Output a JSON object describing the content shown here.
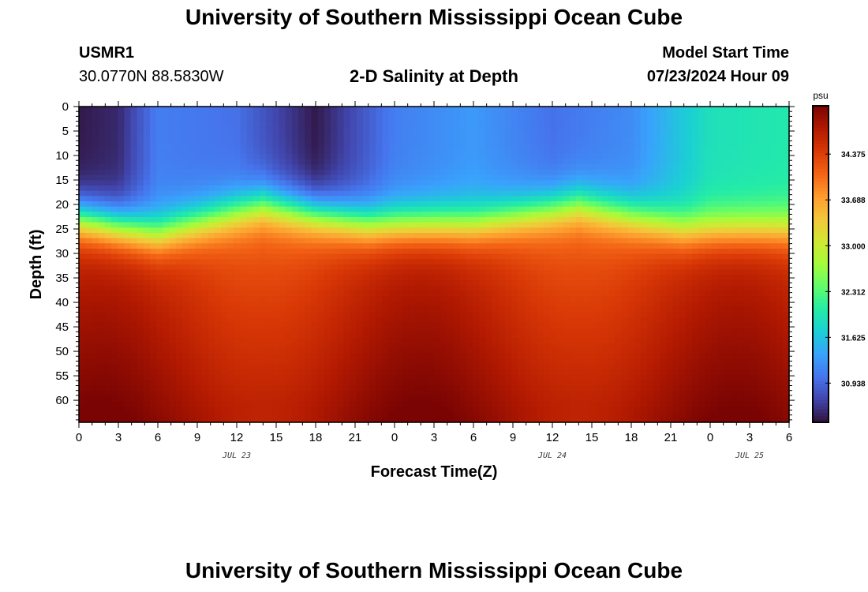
{
  "header": {
    "title": "University of Southern Mississippi Ocean Cube",
    "station_id": "USMR1",
    "station_coords": "30.0770N  88.5830W",
    "chart_title": "2-D Salinity at Depth",
    "model_label": "Model Start Time",
    "model_time": "07/23/2024 Hour 09"
  },
  "footer": {
    "title": "University of Southern Mississippi Ocean Cube"
  },
  "chart_data": {
    "type": "heatmap",
    "title": "2-D Salinity at Depth",
    "xlabel": "Forecast Time(Z)",
    "ylabel": "Depth (ft)",
    "x_hours_range": [
      0,
      54
    ],
    "x_tick_labels": [
      "0",
      "3",
      "6",
      "9",
      "12",
      "15",
      "18",
      "21",
      "0",
      "3",
      "6",
      "9",
      "12",
      "15",
      "18",
      "21",
      "0",
      "3",
      "6"
    ],
    "date_labels": [
      {
        "text": "JUL 23",
        "hour": 12
      },
      {
        "text": "JUL 24",
        "hour": 36
      },
      {
        "text": "JUL 25",
        "hour": 51
      }
    ],
    "y_range_ft": [
      0,
      64.5
    ],
    "y_tick_labels": [
      "0",
      "5",
      "10",
      "15",
      "20",
      "25",
      "30",
      "35",
      "40",
      "45",
      "50",
      "55",
      "60"
    ],
    "colorbar": {
      "unit": "psu",
      "ticks": [
        "34.375",
        "33.688",
        "33.000",
        "32.312",
        "31.625",
        "30.938"
      ],
      "range": [
        30.35,
        35.1
      ]
    },
    "field_description": {
      "surface_salinity_psu": [
        {
          "hour": 0,
          "value": 30.4
        },
        {
          "hour": 3,
          "value": 30.5
        },
        {
          "hour": 6,
          "value": 31.1
        },
        {
          "hour": 12,
          "value": 31.0
        },
        {
          "hour": 18,
          "value": 30.4
        },
        {
          "hour": 24,
          "value": 31.1
        },
        {
          "hour": 30,
          "value": 31.3
        },
        {
          "hour": 36,
          "value": 31.0
        },
        {
          "hour": 42,
          "value": 31.2
        },
        {
          "hour": 48,
          "value": 31.9
        },
        {
          "hour": 54,
          "value": 32.0
        }
      ],
      "halocline_depth_ft": [
        {
          "hour": 0,
          "value": 23
        },
        {
          "hour": 6,
          "value": 26
        },
        {
          "hour": 14,
          "value": 20
        },
        {
          "hour": 22,
          "value": 24
        },
        {
          "hour": 30,
          "value": 24
        },
        {
          "hour": 38,
          "value": 20
        },
        {
          "hour": 46,
          "value": 25
        },
        {
          "hour": 54,
          "value": 25
        }
      ],
      "bottom_salinity_psu": 34.9
    }
  },
  "colors": {
    "colormap": [
      "#30123b",
      "#4145ab",
      "#4675ed",
      "#39a2fc",
      "#1bcfd4",
      "#24eca6",
      "#61fc6c",
      "#a4fc3b",
      "#d1e834",
      "#f3c63a",
      "#fe9b2d",
      "#f36315",
      "#d93806",
      "#b11901",
      "#7a0403"
    ]
  }
}
